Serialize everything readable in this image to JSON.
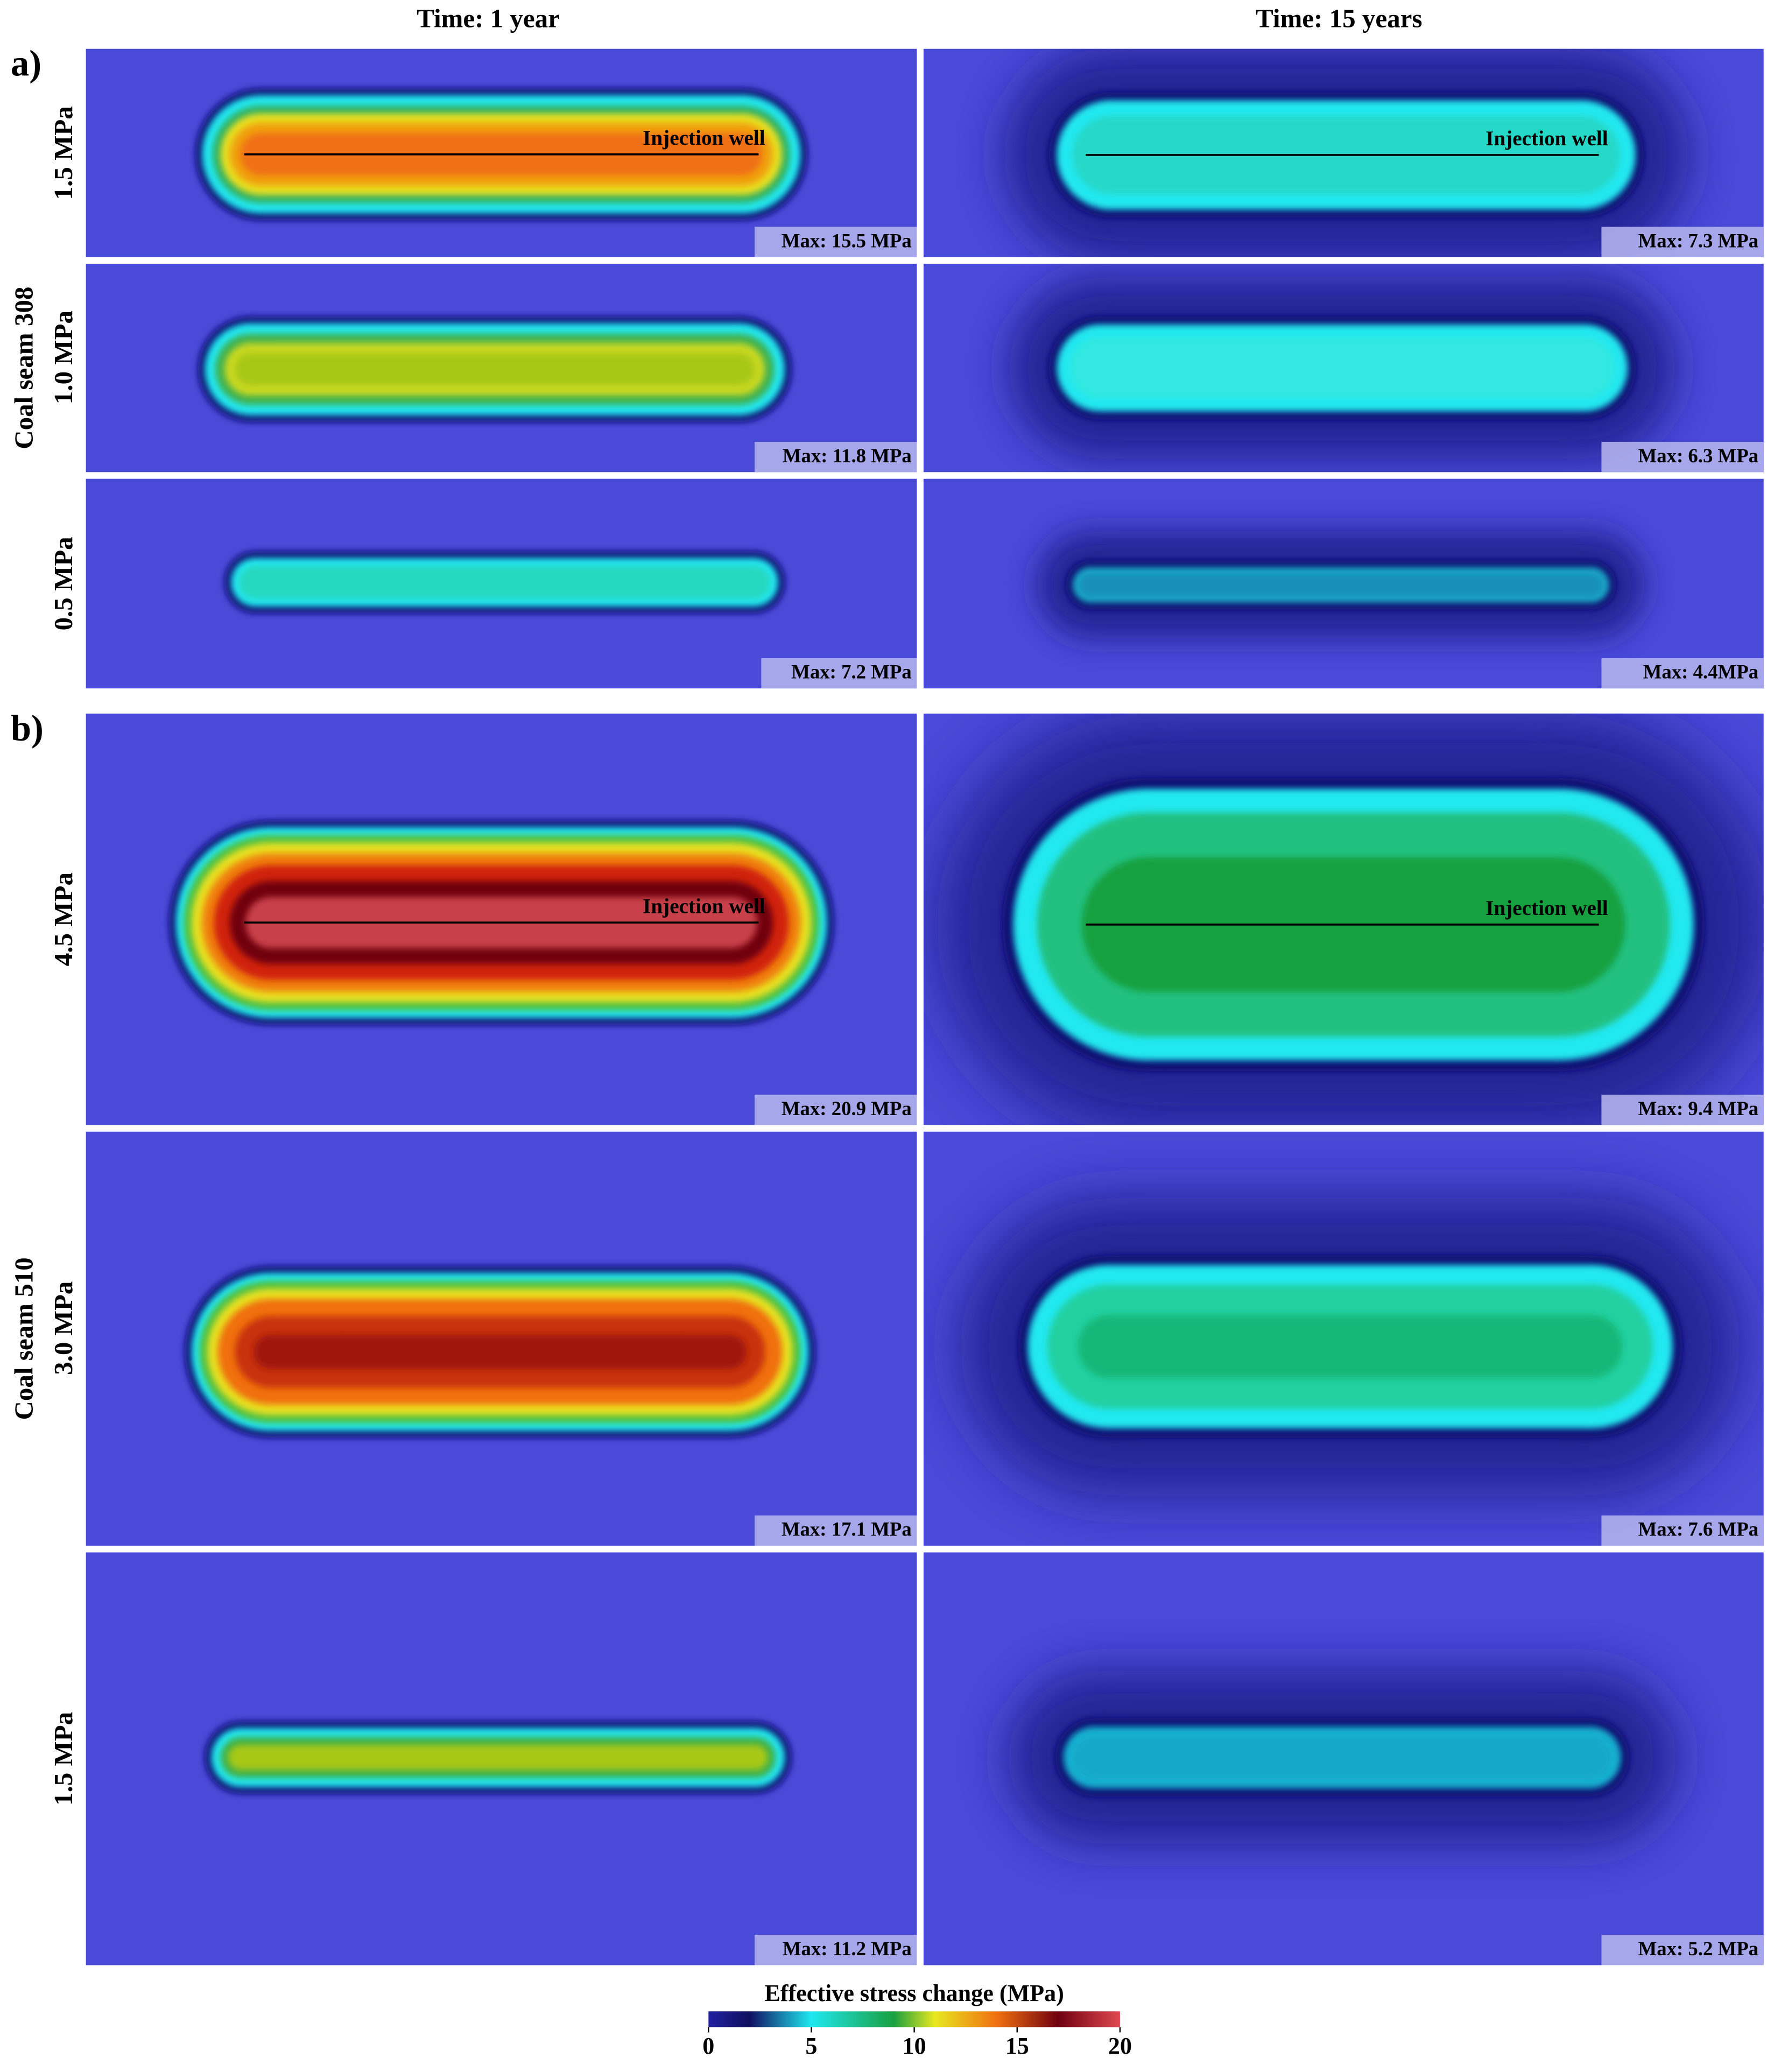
{
  "column_titles": [
    "Time: 1 year",
    "Time: 15 years"
  ],
  "groups": [
    {
      "label": "a)",
      "seam": "Coal seam 308",
      "rows": [
        {
          "pressure": "1.5 MPa",
          "panels": [
            {
              "max": "Max: 15.5 MPa",
              "well": "Injection well"
            },
            {
              "max": "Max: 7.3 MPa",
              "well": "Injection well"
            }
          ]
        },
        {
          "pressure": "1.0 MPa",
          "panels": [
            {
              "max": "Max: 11.8 MPa"
            },
            {
              "max": "Max: 6.3 MPa"
            }
          ]
        },
        {
          "pressure": "0.5 MPa",
          "panels": [
            {
              "max": "Max: 7.2 MPa"
            },
            {
              "max": "Max: 4.4MPa"
            }
          ]
        }
      ]
    },
    {
      "label": "b)",
      "seam": "Coal seam 510",
      "rows": [
        {
          "pressure": "4.5 MPa",
          "panels": [
            {
              "max": "Max: 20.9 MPa",
              "well": "Injection well"
            },
            {
              "max": "Max: 9.4 MPa",
              "well": "Injection well"
            }
          ]
        },
        {
          "pressure": "3.0 MPa",
          "panels": [
            {
              "max": "Max: 17.1 MPa"
            },
            {
              "max": "Max: 7.6 MPa"
            }
          ]
        },
        {
          "pressure": "1.5 MPa",
          "panels": [
            {
              "max": "Max: 11.2 MPa"
            },
            {
              "max": "Max: 5.2 MPa"
            }
          ]
        }
      ]
    }
  ],
  "colorbar": {
    "title": "Effective stress change (MPa)",
    "lim": [
      0,
      20
    ],
    "ticks": [
      0,
      5,
      10,
      15,
      20
    ]
  }
}
